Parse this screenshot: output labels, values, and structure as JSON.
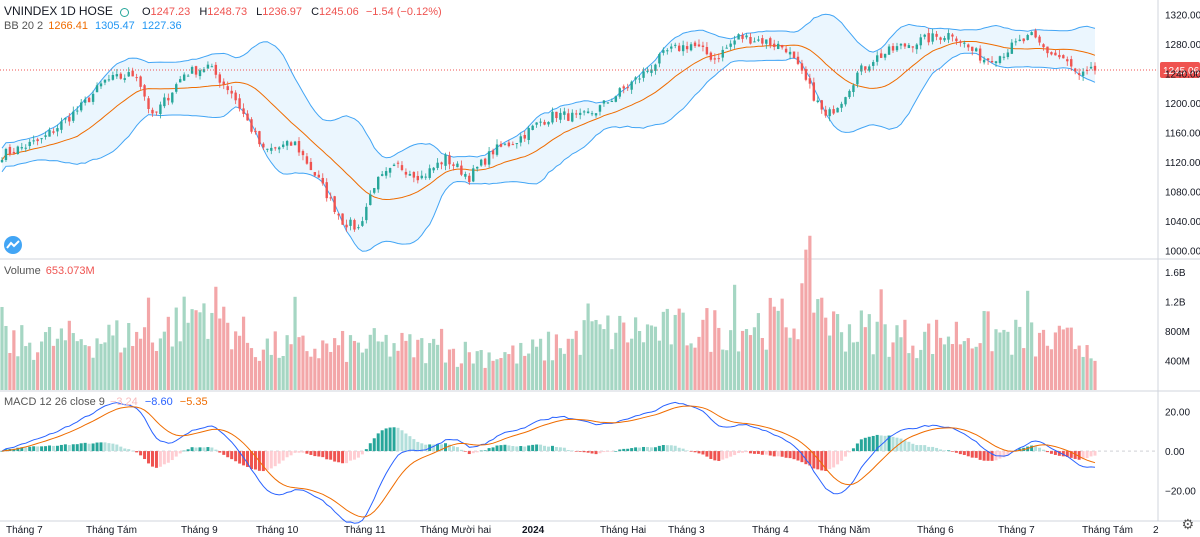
{
  "symbol": {
    "name": "VNINDEX",
    "interval": "1D",
    "exchange": "HOSE"
  },
  "ohlc": {
    "o_key": "O",
    "o": "1247.23",
    "h_key": "H",
    "h": "1248.73",
    "l_key": "L",
    "l": "1236.97",
    "c_key": "C",
    "c": "1245.06",
    "chg": "−1.54 (−0.12%)"
  },
  "bb": {
    "label": "BB 20 2",
    "mid": "1266.41",
    "upper": "1305.47",
    "lower": "1227.36"
  },
  "volume": {
    "label": "Volume",
    "value": "653.073M"
  },
  "macd": {
    "label": "MACD 12 26 close 9",
    "hist": "−3.24",
    "macd": "−8.60",
    "signal": "−5.35"
  },
  "last_price_tag": "1245.06",
  "colors": {
    "up": "#26a69a",
    "down": "#ef5350",
    "up_vol": "#a5d6c3",
    "down_vol": "#f3a6a8",
    "bb_line": "#42a5f5",
    "bb_fill": "#e3f2fd",
    "basis": "#ef6c00",
    "macd": "#2962ff",
    "signal": "#ef6c00"
  },
  "chart_data": [
    {
      "type": "candlestick",
      "title": "VNINDEX 1D HOSE",
      "x_ticks": [
        "Tháng 7",
        "Tháng Tám",
        "Tháng 9",
        "Tháng 10",
        "Tháng 11",
        "Tháng Mười hai",
        "2024",
        "Tháng Hai",
        "Tháng 3",
        "Tháng 4",
        "Tháng Năm",
        "Tháng 6",
        "Tháng 7",
        "Tháng Tám"
      ],
      "y_ticks": [
        "1000.00",
        "1040.00",
        "1080.00",
        "1120.00",
        "1160.00",
        "1200.00",
        "1240.00",
        "1280.00",
        "1320.00"
      ],
      "ylim": [
        990,
        1340
      ],
      "overlay": "Bollinger Bands (20, 2)",
      "close_anchors": [
        [
          0,
          1130
        ],
        [
          10,
          1150
        ],
        [
          20,
          1195
        ],
        [
          26,
          1230
        ],
        [
          34,
          1240
        ],
        [
          38,
          1180
        ],
        [
          46,
          1240
        ],
        [
          52,
          1250
        ],
        [
          58,
          1215
        ],
        [
          66,
          1135
        ],
        [
          74,
          1145
        ],
        [
          80,
          1095
        ],
        [
          86,
          1040
        ],
        [
          90,
          1030
        ],
        [
          94,
          1090
        ],
        [
          100,
          1115
        ],
        [
          106,
          1100
        ],
        [
          112,
          1125
        ],
        [
          118,
          1100
        ],
        [
          124,
          1135
        ],
        [
          130,
          1150
        ],
        [
          136,
          1175
        ],
        [
          140,
          1185
        ],
        [
          146,
          1180
        ],
        [
          150,
          1190
        ],
        [
          156,
          1215
        ],
        [
          162,
          1240
        ],
        [
          168,
          1270
        ],
        [
          174,
          1280
        ],
        [
          180,
          1260
        ],
        [
          186,
          1290
        ],
        [
          192,
          1285
        ],
        [
          198,
          1275
        ],
        [
          204,
          1220
        ],
        [
          208,
          1180
        ],
        [
          212,
          1205
        ],
        [
          216,
          1240
        ],
        [
          220,
          1260
        ],
        [
          226,
          1275
        ],
        [
          232,
          1285
        ],
        [
          236,
          1290
        ],
        [
          240,
          1295
        ],
        [
          244,
          1275
        ],
        [
          248,
          1260
        ],
        [
          252,
          1265
        ],
        [
          256,
          1280
        ],
        [
          260,
          1290
        ],
        [
          264,
          1270
        ],
        [
          268,
          1260
        ],
        [
          272,
          1235
        ],
        [
          276,
          1245
        ]
      ]
    },
    {
      "type": "bar",
      "title": "Volume",
      "y_ticks": [
        "400M",
        "800M",
        "1.2B",
        "1.6B"
      ],
      "ylim": [
        0,
        1750000000
      ],
      "value_anchors": [
        [
          0,
          620
        ],
        [
          40,
          760
        ],
        [
          52,
          1150
        ],
        [
          64,
          580
        ],
        [
          80,
          560
        ],
        [
          96,
          610
        ],
        [
          120,
          490
        ],
        [
          132,
          480
        ],
        [
          150,
          770
        ],
        [
          176,
          820
        ],
        [
          200,
          940
        ],
        [
          204,
          1500
        ],
        [
          210,
          860
        ],
        [
          230,
          700
        ],
        [
          248,
          780
        ],
        [
          264,
          640
        ],
        [
          276,
          650
        ]
      ],
      "unit": "M"
    },
    {
      "type": "line",
      "title": "MACD 12 26 close 9",
      "y_ticks": [
        "20.00",
        "0.00",
        "−20.00"
      ],
      "ylim": [
        -35,
        30
      ],
      "series": [
        {
          "name": "MACD"
        },
        {
          "name": "Signal"
        },
        {
          "name": "Histogram"
        }
      ]
    }
  ]
}
